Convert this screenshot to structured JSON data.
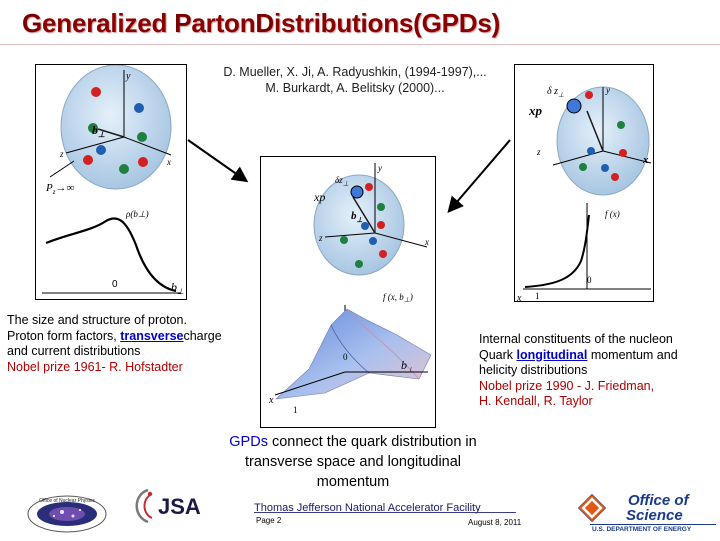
{
  "title": {
    "part1_cap": "G",
    "part1_rest": "eneralized ",
    "part2_cap": "P",
    "part2_rest": "arton",
    "part3_cap": "D",
    "part3_rest": "istributions(GPDs)"
  },
  "authors": {
    "line1": "D. Mueller, X. Ji, A. Radyushkin, (1994-1997),...",
    "line2": "M. Burkardt, A. Belitsky (2000)..."
  },
  "left_text": {
    "line1": "The size and structure of proton.",
    "line2_a": "Proton form factors, ",
    "line2_b": "transverse",
    "line2_c": "charge",
    "line3": "and current distributions",
    "line4": "Nobel prize 1961- R. Hofstadter"
  },
  "right_text": {
    "line1": "Internal constituents of the nucleon",
    "line2_a": "Quark ",
    "line2_b": "longitudinal",
    "line2_c": " momentum and",
    "line3": "helicity distributions",
    "line4": "Nobel prize 1990 - J. Friedman,",
    "line5": "H. Kendall, R. Taylor"
  },
  "gpd_note": {
    "lead": "GPDs",
    "rest1": " connect the quark distribution in",
    "line2": "transverse space and longitudinal",
    "line3": "momentum"
  },
  "left_fig": {
    "y": "y",
    "b": "b",
    "perp": "⊥",
    "z": "z",
    "x": "x",
    "pz": "P",
    "pz_sub": "z",
    "arrow_inf": "→∞",
    "rho": "ρ(b",
    "rho_close": ")",
    "zero": "0",
    "b_axis": "b",
    "b_axis_sub": "⊥"
  },
  "center_fig": {
    "y": "y",
    "delta": "δz",
    "xp": "xp",
    "b": "b",
    "z": "z",
    "x": "x",
    "f_label": "f (x, b",
    "f_close": ")",
    "zero": "0",
    "b_axis": "b",
    "x_axis": "x",
    "one": "1"
  },
  "right_fig": {
    "delta": "δ z",
    "xp": "xp",
    "y": "y",
    "z": "z",
    "x": "x",
    "f_label": "f (x)",
    "zero": "0",
    "one": "1",
    "x_axis": "x"
  },
  "footer": {
    "lab": "Thomas Jefferson National Accelerator Facility",
    "page": "Page 2",
    "date": "August 8, 2011",
    "jsa": "JSA",
    "onp_ring": "Office of Nuclear Physics",
    "sci_line1": "Office of",
    "sci_line2": "Science",
    "sci_doe": "U.S. DEPARTMENT OF ENERGY"
  },
  "colors": {
    "title": "#8b0000",
    "accent_red": "#b00000",
    "accent_blue": "#0000cc",
    "proton_fill": "#c8dff0",
    "quark_red": "#d42020",
    "quark_blue": "#1f5fb0",
    "quark_green": "#1f7f3f",
    "surface": "#8fb0e8",
    "doe_blue": "#1c3a8c",
    "doe_orange": "#e05a14"
  }
}
